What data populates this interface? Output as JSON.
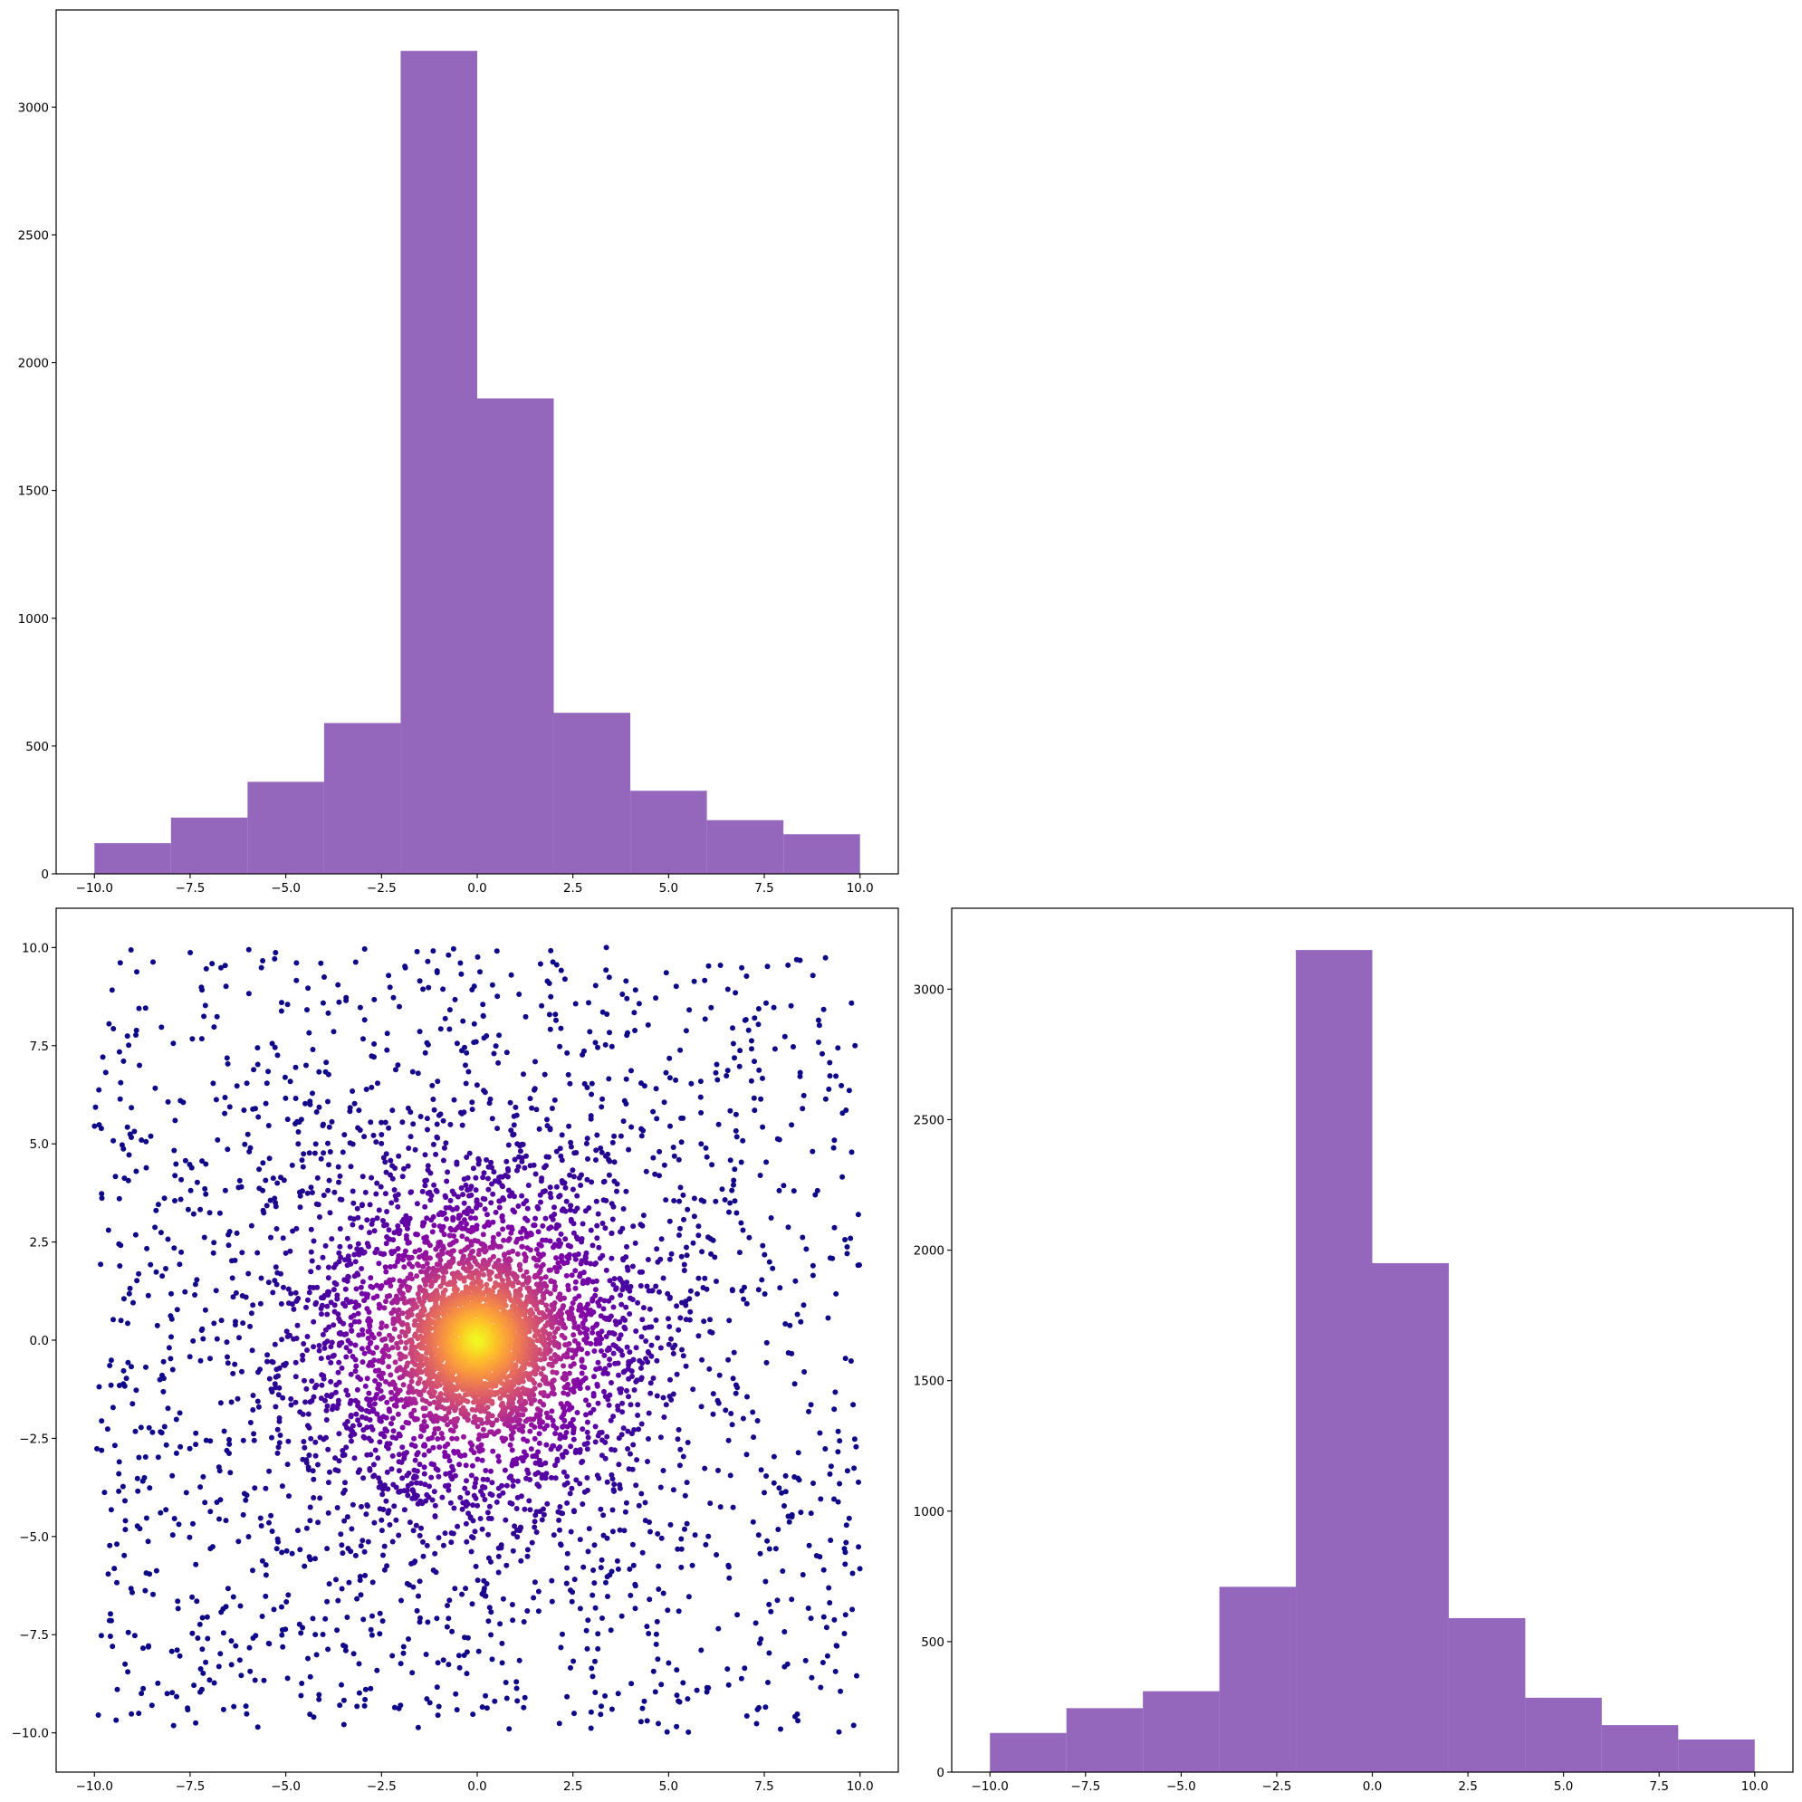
{
  "chart_data": [
    {
      "type": "bar",
      "panel": "top-left",
      "title": "",
      "xlabel": "",
      "ylabel": "",
      "bin_edges": [
        -10,
        -8,
        -6,
        -4,
        -2,
        0,
        2,
        4,
        6,
        8,
        10
      ],
      "values": [
        120,
        220,
        360,
        590,
        3220,
        1860,
        630,
        325,
        210,
        155
      ],
      "xlim": [
        -11,
        11
      ],
      "ylim": [
        0,
        3380
      ],
      "xticks": [
        "-10.0",
        "-7.5",
        "-5.0",
        "-2.5",
        "0.0",
        "2.5",
        "5.0",
        "7.5",
        "10.0"
      ],
      "yticks": [
        "0",
        "500",
        "1000",
        "1500",
        "2000",
        "2500",
        "3000"
      ],
      "color": "#9467bd"
    },
    {
      "type": "scatter",
      "panel": "bottom-left",
      "title": "",
      "xlabel": "",
      "ylabel": "",
      "n_points": 6000,
      "x_range": [
        -10,
        10
      ],
      "y_range": [
        -10,
        10
      ],
      "colormap": "plasma",
      "color_scale": "density, highest at center (0, 0)",
      "xlim": [
        -11,
        11
      ],
      "ylim": [
        -11,
        11
      ],
      "xticks": [
        "-10.0",
        "-7.5",
        "-5.0",
        "-2.5",
        "0.0",
        "2.5",
        "5.0",
        "7.5",
        "10.0"
      ],
      "yticks": [
        "-10.0",
        "-7.5",
        "-5.0",
        "-2.5",
        "0.0",
        "2.5",
        "5.0",
        "7.5",
        "10.0"
      ]
    },
    {
      "type": "bar",
      "panel": "bottom-right",
      "title": "",
      "xlabel": "",
      "ylabel": "",
      "bin_edges": [
        -10,
        -8,
        -6,
        -4,
        -2,
        0,
        2,
        4,
        6,
        8,
        10
      ],
      "values": [
        150,
        245,
        310,
        710,
        3150,
        1950,
        590,
        285,
        180,
        125
      ],
      "xlim": [
        -11,
        11
      ],
      "ylim": [
        0,
        3310
      ],
      "xticks": [
        "-10.0",
        "-7.5",
        "-5.0",
        "-2.5",
        "0.0",
        "2.5",
        "5.0",
        "7.5",
        "10.0"
      ],
      "yticks": [
        "0",
        "500",
        "1000",
        "1500",
        "2000",
        "2500",
        "3000"
      ],
      "color": "#9467bd"
    }
  ]
}
